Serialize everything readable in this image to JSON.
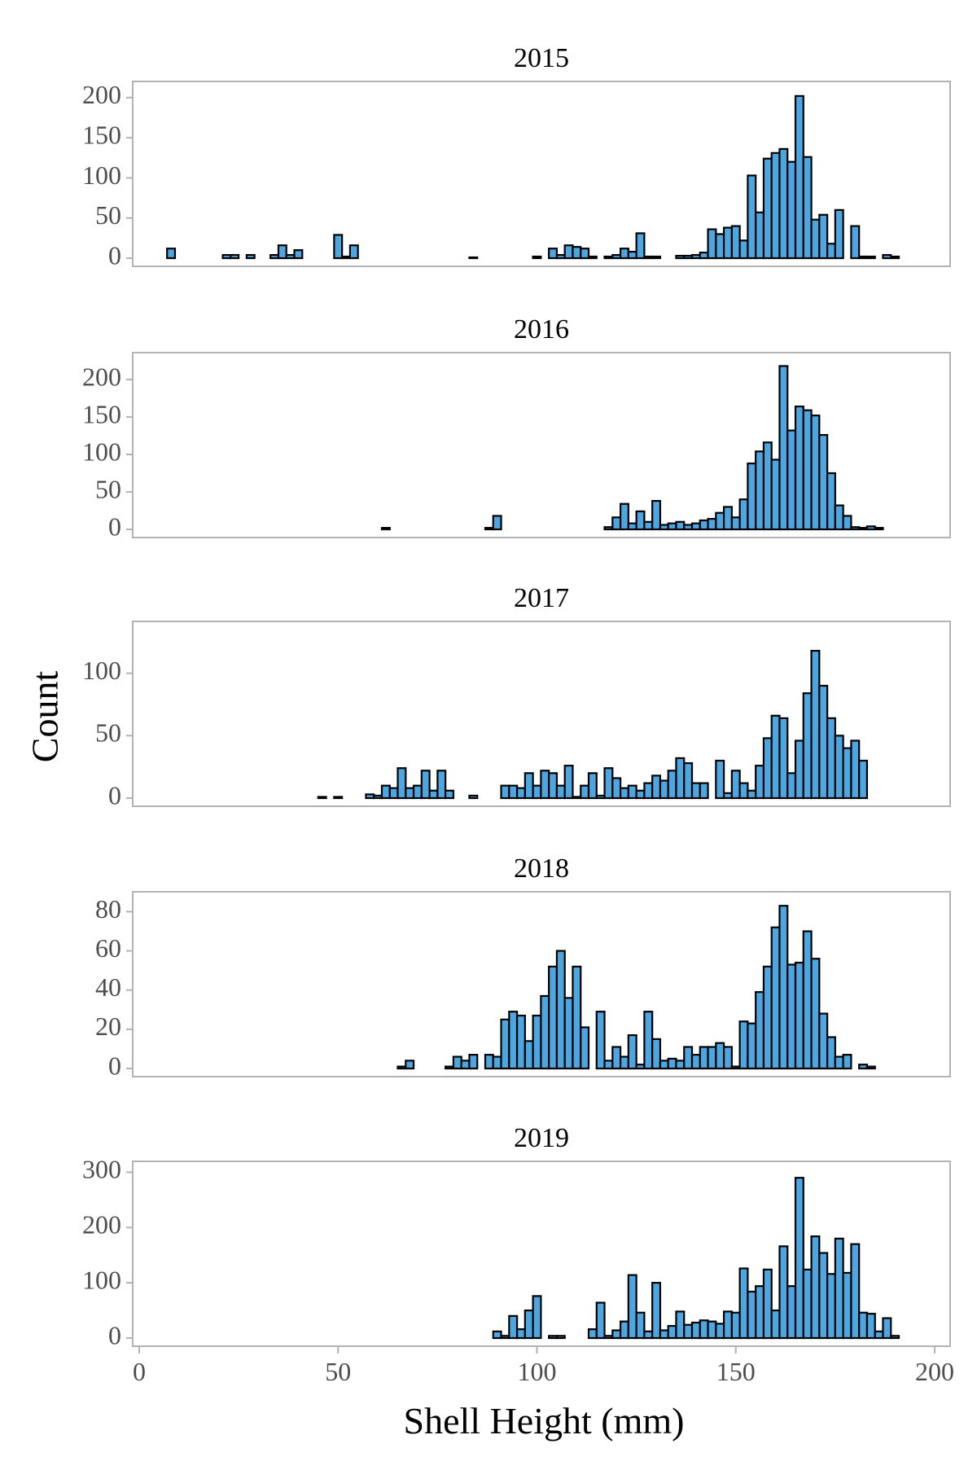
{
  "figure": {
    "xlabel": "Shell Height (mm)",
    "ylabel": "Count",
    "bar_fill": "#4DA6DF",
    "bar_stroke": "#000000",
    "panel_border": "#B3B3B3",
    "axis_text_color": "#4D4D4D"
  },
  "chart_data": [
    {
      "type": "histogram",
      "title": "2015",
      "xlabel": "Shell Height (mm)",
      "ylabel": "Count",
      "xlim": [
        0,
        200
      ],
      "ylim": [
        0,
        210
      ],
      "xticks": [
        0,
        50,
        100,
        150,
        200
      ],
      "yticks": [
        0,
        50,
        100,
        150,
        200
      ],
      "bin_start": 7,
      "bin_width": 2,
      "counts": [
        12,
        0,
        0,
        0,
        0,
        0,
        0,
        4,
        4,
        0,
        4,
        0,
        0,
        4,
        16,
        4,
        10,
        0,
        0,
        0,
        0,
        29,
        2,
        16,
        0,
        0,
        0,
        0,
        0,
        0,
        0,
        0,
        0,
        0,
        0,
        0,
        0,
        0,
        1,
        0,
        0,
        0,
        0,
        0,
        0,
        0,
        2,
        0,
        12,
        4,
        16,
        14,
        12,
        2,
        0,
        2,
        4,
        12,
        8,
        31,
        2,
        2,
        0,
        0,
        3,
        3,
        4,
        7,
        36,
        30,
        38,
        40,
        22,
        103,
        57,
        124,
        131,
        136,
        120,
        202,
        126,
        48,
        54,
        18,
        60,
        0,
        40,
        2,
        2,
        0,
        4,
        2
      ]
    },
    {
      "type": "histogram",
      "title": "2016",
      "xlabel": "Shell Height (mm)",
      "ylabel": "Count",
      "xlim": [
        0,
        200
      ],
      "ylim": [
        0,
        225
      ],
      "xticks": [
        0,
        50,
        100,
        150,
        200
      ],
      "yticks": [
        0,
        50,
        100,
        150,
        200
      ],
      "bin_start": 7,
      "bin_width": 2,
      "counts": [
        0,
        0,
        0,
        0,
        0,
        0,
        0,
        0,
        0,
        0,
        0,
        0,
        0,
        0,
        0,
        0,
        0,
        0,
        0,
        0,
        0,
        0,
        0,
        0,
        0,
        0,
        0,
        2,
        0,
        0,
        0,
        0,
        0,
        0,
        0,
        0,
        0,
        0,
        0,
        0,
        2,
        18,
        0,
        0,
        0,
        0,
        0,
        0,
        0,
        0,
        0,
        0,
        0,
        0,
        0,
        3,
        16,
        34,
        8,
        24,
        10,
        38,
        6,
        8,
        10,
        6,
        8,
        12,
        14,
        22,
        30,
        16,
        40,
        88,
        104,
        116,
        93,
        218,
        132,
        164,
        159,
        152,
        126,
        75,
        32,
        18,
        3,
        2,
        4,
        2,
        0,
        0
      ]
    },
    {
      "type": "histogram",
      "title": "2017",
      "xlabel": "Shell Height (mm)",
      "ylabel": "Count",
      "xlim": [
        0,
        200
      ],
      "ylim": [
        0,
        135
      ],
      "xticks": [
        0,
        50,
        100,
        150,
        200
      ],
      "yticks": [
        0,
        50,
        100
      ],
      "bin_start": 7,
      "bin_width": 2,
      "counts": [
        0,
        0,
        0,
        0,
        0,
        0,
        0,
        0,
        0,
        0,
        0,
        0,
        0,
        0,
        0,
        0,
        0,
        0,
        0,
        1,
        0,
        1,
        0,
        0,
        0,
        3,
        2,
        10,
        8,
        24,
        8,
        10,
        22,
        6,
        22,
        6,
        0,
        0,
        2,
        0,
        0,
        0,
        10,
        10,
        8,
        20,
        10,
        22,
        20,
        10,
        26,
        1,
        10,
        20,
        2,
        24,
        16,
        8,
        10,
        6,
        12,
        18,
        14,
        22,
        32,
        28,
        12,
        12,
        0,
        30,
        4,
        22,
        12,
        6,
        26,
        48,
        66,
        64,
        20,
        46,
        84,
        118,
        90,
        64,
        50,
        40,
        46,
        30,
        0,
        0,
        0,
        0
      ]
    },
    {
      "type": "histogram",
      "title": "2018",
      "xlabel": "Shell Height (mm)",
      "ylabel": "Count",
      "xlim": [
        0,
        200
      ],
      "ylim": [
        0,
        86
      ],
      "xticks": [
        0,
        50,
        100,
        150,
        200
      ],
      "yticks": [
        0,
        20,
        40,
        60,
        80
      ],
      "bin_start": 7,
      "bin_width": 2,
      "counts": [
        0,
        0,
        0,
        0,
        0,
        0,
        0,
        0,
        0,
        0,
        0,
        0,
        0,
        0,
        0,
        0,
        0,
        0,
        0,
        0,
        0,
        0,
        0,
        0,
        0,
        0,
        0,
        0,
        0,
        1,
        4,
        0,
        0,
        0,
        0,
        1,
        6,
        4,
        7,
        0,
        7,
        6,
        25,
        29,
        27,
        14,
        27,
        37,
        52,
        60,
        36,
        52,
        21,
        0,
        29,
        4,
        11,
        6,
        17,
        2,
        29,
        15,
        4,
        5,
        4,
        11,
        7,
        11,
        11,
        13,
        11,
        1,
        24,
        23,
        39,
        52,
        72,
        83,
        53,
        54,
        70,
        56,
        28,
        16,
        6,
        7,
        0,
        2,
        1,
        0,
        0,
        0
      ]
    },
    {
      "type": "histogram",
      "title": "2019",
      "xlabel": "Shell Height (mm)",
      "ylabel": "Count",
      "xlim": [
        0,
        200
      ],
      "ylim": [
        0,
        305
      ],
      "xticks": [
        0,
        50,
        100,
        150,
        200
      ],
      "yticks": [
        0,
        100,
        200,
        300
      ],
      "bin_start": 7,
      "bin_width": 2,
      "counts": [
        0,
        0,
        0,
        0,
        0,
        0,
        0,
        0,
        0,
        0,
        0,
        0,
        0,
        0,
        0,
        0,
        0,
        0,
        0,
        0,
        0,
        0,
        0,
        0,
        0,
        0,
        0,
        0,
        0,
        0,
        0,
        0,
        0,
        0,
        0,
        0,
        0,
        0,
        0,
        0,
        0,
        12,
        4,
        40,
        16,
        50,
        76,
        0,
        4,
        4,
        0,
        0,
        0,
        16,
        64,
        4,
        14,
        30,
        114,
        46,
        12,
        100,
        14,
        22,
        48,
        24,
        28,
        32,
        30,
        26,
        48,
        46,
        126,
        84,
        94,
        124,
        50,
        166,
        94,
        290,
        124,
        184,
        154,
        116,
        180,
        118,
        170,
        46,
        44,
        12,
        36,
        4
      ]
    }
  ]
}
